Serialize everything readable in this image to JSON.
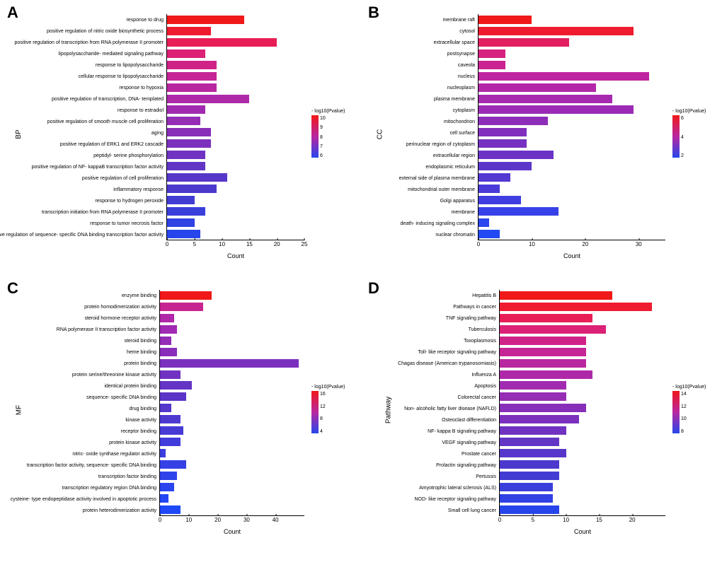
{
  "panels": {
    "A": {
      "letter": "A",
      "y_label": "BP",
      "x_label": "Count",
      "x_max": 25,
      "x_ticks": [
        0,
        5,
        10,
        15,
        20,
        25
      ],
      "legend_title": "- log10(Pvalue)",
      "legend_min": 6,
      "legend_max": 10,
      "legend_ticks": [
        "10",
        "9",
        "8",
        "7",
        "6"
      ],
      "categories": [
        {
          "label": "response to drug",
          "count": 14,
          "color": "#f01818"
        },
        {
          "label": "positive regulation of nitric oxide biosynthetic process",
          "count": 8,
          "color": "#ef1b2e"
        },
        {
          "label": "positive regulation of transcription from RNA polymerase II promoter",
          "count": 20,
          "color": "#e91e56"
        },
        {
          "label": "lipopolysaccharide- mediated signaling pathway",
          "count": 7,
          "color": "#dc2176"
        },
        {
          "label": "response to lipopolysaccharide",
          "count": 9,
          "color": "#d02388"
        },
        {
          "label": "cellular response to lipopolysaccharide",
          "count": 9,
          "color": "#c52595"
        },
        {
          "label": "response to hypoxia",
          "count": 9,
          "color": "#b927a0"
        },
        {
          "label": "positive regulation of transcription, DNA- templated",
          "count": 15,
          "color": "#ad29a8"
        },
        {
          "label": "response to estradiol",
          "count": 7,
          "color": "#a12bb0"
        },
        {
          "label": "positive regulation of smooth muscle cell proliferation",
          "count": 6,
          "color": "#952db5"
        },
        {
          "label": "aging",
          "count": 8,
          "color": "#882fb9"
        },
        {
          "label": "positive regulation of ERK1 and ERK2 cascade",
          "count": 8,
          "color": "#7c31bd"
        },
        {
          "label": "peptidyl- serine phosphorylation",
          "count": 7,
          "color": "#7033c1"
        },
        {
          "label": "positive regulation of NF- kappaB transcription factor activity",
          "count": 7,
          "color": "#6335c5"
        },
        {
          "label": "positive regulation of cell proliferation",
          "count": 11,
          "color": "#5737c9"
        },
        {
          "label": "inflammatory response",
          "count": 9,
          "color": "#4b39cd"
        },
        {
          "label": "response to hydrogen peroxide",
          "count": 5,
          "color": "#423cd3"
        },
        {
          "label": "transcription initiation from RNA polymerase II promoter",
          "count": 7,
          "color": "#3a3fdb"
        },
        {
          "label": "response to tumor necrosis factor",
          "count": 5,
          "color": "#3042e3"
        },
        {
          "label": "positive regulation of sequence- specific DNA binding transcription factor activity",
          "count": 6,
          "color": "#2646ec"
        }
      ]
    },
    "B": {
      "letter": "B",
      "y_label": "CC",
      "x_label": "Count",
      "x_max": 35,
      "x_ticks": [
        0,
        10,
        20,
        30
      ],
      "legend_title": "- log10(Pvalue)",
      "legend_min": 2,
      "legend_max": 6,
      "legend_ticks": [
        "6",
        "4",
        "2"
      ],
      "categories": [
        {
          "label": "membrane raft",
          "count": 10,
          "color": "#f01818"
        },
        {
          "label": "cytosol",
          "count": 29,
          "color": "#ef1b2e"
        },
        {
          "label": "extracellular space",
          "count": 17,
          "color": "#e31e60"
        },
        {
          "label": "postsynapse",
          "count": 5,
          "color": "#d62180"
        },
        {
          "label": "caveola",
          "count": 5,
          "color": "#ca2392"
        },
        {
          "label": "nucleus",
          "count": 32,
          "color": "#be25a0"
        },
        {
          "label": "nucleoplasm",
          "count": 22,
          "color": "#b327a8"
        },
        {
          "label": "plasma membrane",
          "count": 25,
          "color": "#a629b0"
        },
        {
          "label": "cytoplasm",
          "count": 29,
          "color": "#9b2bb6"
        },
        {
          "label": "mitochondrion",
          "count": 13,
          "color": "#8e2dba"
        },
        {
          "label": "cell surface",
          "count": 9,
          "color": "#822fbe"
        },
        {
          "label": "perinuclear region of cytoplasm",
          "count": 9,
          "color": "#7631c2"
        },
        {
          "label": "extracellular region",
          "count": 14,
          "color": "#6a33c6"
        },
        {
          "label": "endoplasmic reticulum",
          "count": 10,
          "color": "#5d35cb"
        },
        {
          "label": "external side of plasma membrane",
          "count": 6,
          "color": "#5338d1"
        },
        {
          "label": "mitochondrial outer membrane",
          "count": 4,
          "color": "#4a3bd8"
        },
        {
          "label": "Golgi apparatus",
          "count": 8,
          "color": "#403ee0"
        },
        {
          "label": "membrane",
          "count": 15,
          "color": "#3642e8"
        },
        {
          "label": "death- inducing signaling complex",
          "count": 2,
          "color": "#2c46ef"
        },
        {
          "label": "nuclear chromatin",
          "count": 4,
          "color": "#2349f5"
        }
      ]
    },
    "C": {
      "letter": "C",
      "y_label": "MF",
      "x_label": "Count",
      "x_max": 50,
      "x_ticks": [
        0,
        10,
        20,
        30,
        40
      ],
      "legend_title": "- log10(Pvalue)",
      "legend_min": 4,
      "legend_max": 16,
      "legend_ticks": [
        "16",
        "12",
        "8",
        "4"
      ],
      "categories": [
        {
          "label": "enzyme binding",
          "count": 18,
          "color": "#f01818"
        },
        {
          "label": "protein homodimerization activity",
          "count": 15,
          "color": "#c82490"
        },
        {
          "label": "steroid hormone receptor activity",
          "count": 5,
          "color": "#b028aa"
        },
        {
          "label": "RNA polymerase II transcription factor activity",
          "count": 6,
          "color": "#a02ab2"
        },
        {
          "label": "steroid binding",
          "count": 4,
          "color": "#942cb7"
        },
        {
          "label": "heme binding",
          "count": 6,
          "color": "#882eba"
        },
        {
          "label": "protein binding",
          "count": 48,
          "color": "#7c30be"
        },
        {
          "label": "protein serine/threonine kinase activity",
          "count": 7,
          "color": "#7032c1"
        },
        {
          "label": "identical protein binding",
          "count": 11,
          "color": "#6434c5"
        },
        {
          "label": "sequence- specific DNA binding",
          "count": 9,
          "color": "#5c35c8"
        },
        {
          "label": "drug binding",
          "count": 4,
          "color": "#5537cc"
        },
        {
          "label": "kinase activity",
          "count": 7,
          "color": "#4e39d0"
        },
        {
          "label": "receptor binding",
          "count": 8,
          "color": "#483bd5"
        },
        {
          "label": "protein kinase activity",
          "count": 7,
          "color": "#423dda"
        },
        {
          "label": "nitric- oxide synthase regulator activity",
          "count": 2,
          "color": "#3c3fe0"
        },
        {
          "label": "transcription factor activity, sequence- specific DNA binding",
          "count": 9,
          "color": "#3641e5"
        },
        {
          "label": "transcription factor binding",
          "count": 6,
          "color": "#3043ea"
        },
        {
          "label": "transcription regulatory region DNA binding",
          "count": 5,
          "color": "#2a45ef"
        },
        {
          "label": "cysteine- type endopeptidase activity involved in apoptotic process",
          "count": 3,
          "color": "#2447f3"
        },
        {
          "label": "protein heterodimerization activity",
          "count": 7,
          "color": "#1f49f8"
        }
      ]
    },
    "D": {
      "letter": "D",
      "y_label": "Pathway",
      "x_label": "Count",
      "x_max": 25,
      "x_ticks": [
        0,
        5,
        10,
        15,
        20
      ],
      "legend_title": "- log10(Pvalue)",
      "legend_min": 8,
      "legend_max": 14,
      "legend_ticks": [
        "14",
        "12",
        "10",
        "8"
      ],
      "categories": [
        {
          "label": "Hepatitis B",
          "count": 17,
          "color": "#f01818"
        },
        {
          "label": "Pathways in cancer",
          "count": 23,
          "color": "#ef1b2e"
        },
        {
          "label": "TNF signaling pathway",
          "count": 14,
          "color": "#e91e56"
        },
        {
          "label": "Tuberculosis",
          "count": 16,
          "color": "#dc2176"
        },
        {
          "label": "Toxoplasmosis",
          "count": 13,
          "color": "#d02388"
        },
        {
          "label": "Toll- like receptor signaling pathway",
          "count": 13,
          "color": "#c52595"
        },
        {
          "label": "Chagas disease (American trypanosomiasis)",
          "count": 13,
          "color": "#b927a0"
        },
        {
          "label": "Influenza A",
          "count": 14,
          "color": "#ad29a8"
        },
        {
          "label": "Apoptosis",
          "count": 10,
          "color": "#a12bb0"
        },
        {
          "label": "Colorectal cancer",
          "count": 10,
          "color": "#952db5"
        },
        {
          "label": "Non- alcoholic fatty liver disease (NAFLD)",
          "count": 13,
          "color": "#882fb9"
        },
        {
          "label": "Osteoclast differentiation",
          "count": 12,
          "color": "#7c31bd"
        },
        {
          "label": "NF- kappa B signaling pathway",
          "count": 10,
          "color": "#7033c1"
        },
        {
          "label": "VEGF signaling pathway",
          "count": 9,
          "color": "#6335c5"
        },
        {
          "label": "Prostate cancer",
          "count": 10,
          "color": "#5737c9"
        },
        {
          "label": "Prolactin signaling pathway",
          "count": 9,
          "color": "#4b39cd"
        },
        {
          "label": "Pertussis",
          "count": 9,
          "color": "#423cd3"
        },
        {
          "label": "Amyotrophic lateral sclerosis (ALS)",
          "count": 8,
          "color": "#3a3fdb"
        },
        {
          "label": "NOD- like receptor signaling pathway",
          "count": 8,
          "color": "#3042e3"
        },
        {
          "label": "Small cell lung cancer",
          "count": 9,
          "color": "#2646ec"
        }
      ]
    }
  },
  "gradient_colors": {
    "top": "#f01818",
    "bottom": "#2646ec"
  }
}
